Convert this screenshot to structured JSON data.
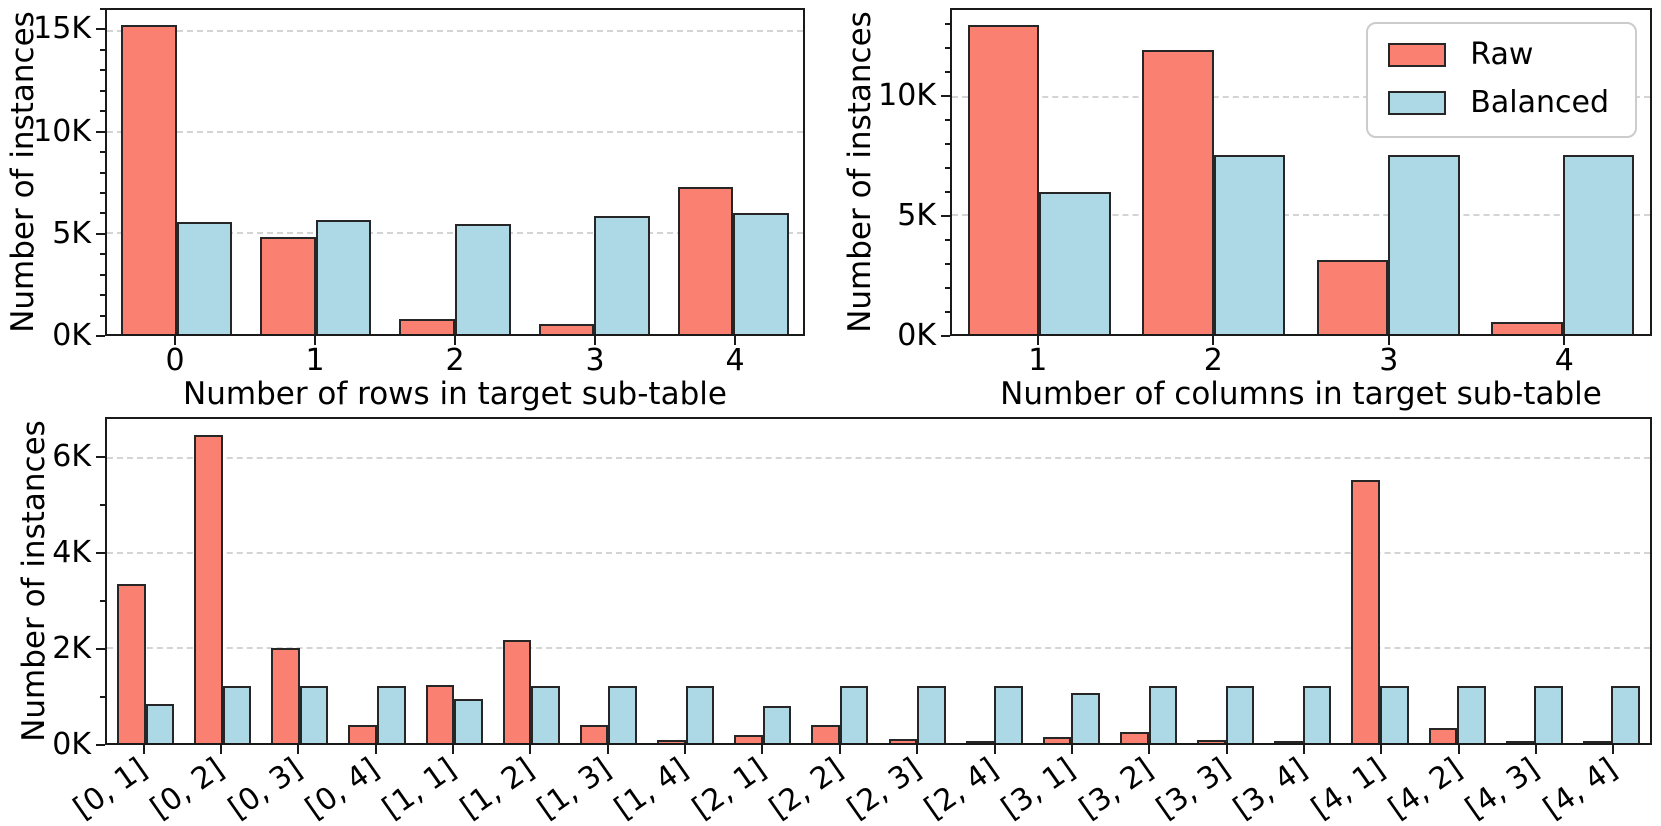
{
  "figure": {
    "background": "#ffffff",
    "raw_color": "#fa8072",
    "balanced_color": "#add8e6",
    "bar_edge_color": "#262626",
    "grid_color": "#d4d4d4",
    "axis_color": "#1a1a1a",
    "legend": {
      "position": "upper-right-of-columns-chart",
      "raw_label": "Raw",
      "balanced_label": "Balanced"
    }
  },
  "chart_data": [
    {
      "id": "rows-histogram",
      "type": "bar",
      "title": "",
      "xlabel": "Number of rows in target sub-table",
      "ylabel": "Number of instances",
      "categories": [
        "0",
        "1",
        "2",
        "3",
        "4"
      ],
      "series": [
        {
          "name": "Raw",
          "values": [
            15300,
            4800,
            720,
            480,
            7300
          ]
        },
        {
          "name": "Balanced",
          "values": [
            5550,
            5650,
            5450,
            5850,
            6000
          ]
        }
      ],
      "ylim": [
        0,
        16050
      ],
      "yticks": [
        0,
        5000,
        10000,
        15000
      ],
      "ytick_labels": [
        "0K",
        "5K",
        "10K",
        "15K"
      ],
      "minor_ytick_step": 1000,
      "grid": "dashed-horizontal",
      "legend": false,
      "bar_fraction": 0.4,
      "xtick_rotation": 0
    },
    {
      "id": "columns-histogram",
      "type": "bar",
      "title": "",
      "xlabel": "Number of columns in target sub-table",
      "ylabel": "Number of instances",
      "categories": [
        "1",
        "2",
        "3",
        "4"
      ],
      "series": [
        {
          "name": "Raw",
          "values": [
            13000,
            11950,
            3100,
            500
          ]
        },
        {
          "name": "Balanced",
          "values": [
            6000,
            7550,
            7550,
            7550
          ]
        }
      ],
      "ylim": [
        0,
        13650
      ],
      "yticks": [
        0,
        5000,
        10000
      ],
      "ytick_labels": [
        "0K",
        "5K",
        "10K"
      ],
      "minor_ytick_step": 1000,
      "grid": "dashed-horizontal",
      "legend": true,
      "bar_fraction": 0.41,
      "xtick_rotation": 0
    },
    {
      "id": "pairs-histogram",
      "type": "bar",
      "title": "",
      "xlabel": "",
      "ylabel": "Number of instances",
      "categories": [
        "[0, 1]",
        "[0, 2]",
        "[0, 3]",
        "[0, 4]",
        "[1, 1]",
        "[1, 2]",
        "[1, 3]",
        "[1, 4]",
        "[2, 1]",
        "[2, 2]",
        "[2, 3]",
        "[2, 4]",
        "[3, 1]",
        "[3, 2]",
        "[3, 3]",
        "[3, 4]",
        "[4, 1]",
        "[4, 2]",
        "[4, 3]",
        "[4, 4]"
      ],
      "series": [
        {
          "name": "Raw",
          "values": [
            3350,
            6500,
            2000,
            370,
            1220,
            2180,
            390,
            60,
            160,
            370,
            90,
            20,
            120,
            230,
            60,
            10,
            5550,
            320,
            40,
            10
          ]
        },
        {
          "name": "Balanced",
          "values": [
            830,
            1200,
            1200,
            1200,
            920,
            1200,
            1200,
            1200,
            780,
            1200,
            1200,
            1200,
            1060,
            1200,
            1200,
            1200,
            1200,
            1200,
            1200,
            1200
          ]
        }
      ],
      "ylim": [
        0,
        6830
      ],
      "yticks": [
        0,
        2000,
        4000,
        6000
      ],
      "ytick_labels": [
        "0K",
        "2K",
        "4K",
        "6K"
      ],
      "minor_ytick_step": 1000,
      "grid": "dashed-horizontal",
      "legend": false,
      "bar_fraction": 0.37,
      "xtick_rotation": 35
    }
  ]
}
